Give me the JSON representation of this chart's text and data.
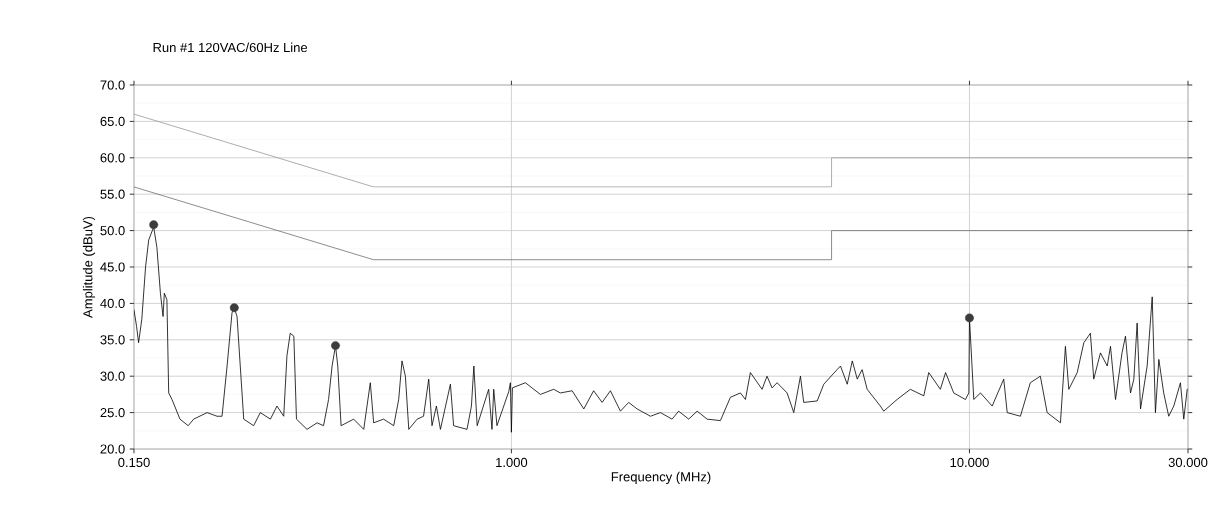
{
  "chart_data": {
    "type": "line",
    "title": "Run #1  120VAC/60Hz   Line",
    "xlabel": "Frequency (MHz)",
    "ylabel": "Amplitude (dBuV)",
    "log": "x",
    "xlim": [
      0.15,
      30
    ],
    "ylim": [
      20,
      70
    ],
    "xticks": [
      {
        "value": 0.15,
        "label": "0.150"
      },
      {
        "value": 1,
        "label": "1.000"
      },
      {
        "value": 10,
        "label": "10.000"
      },
      {
        "value": 30,
        "label": "30.000"
      }
    ],
    "yticks": [
      {
        "value": 20,
        "label": "20.0"
      },
      {
        "value": 25,
        "label": "25.0"
      },
      {
        "value": 30,
        "label": "30.0"
      },
      {
        "value": 35,
        "label": "35.0"
      },
      {
        "value": 40,
        "label": "40.0"
      },
      {
        "value": 45,
        "label": "45.0"
      },
      {
        "value": 50,
        "label": "50.0"
      },
      {
        "value": 55,
        "label": "55.0"
      },
      {
        "value": 60,
        "label": "60.0"
      },
      {
        "value": 65,
        "label": "65.0"
      },
      {
        "value": 70,
        "label": "70.0"
      }
    ],
    "grid": true,
    "series": [
      {
        "color": "#999999",
        "x": [
          0.15,
          0.5,
          5,
          5,
          30
        ],
        "values": [
          66,
          56,
          56,
          60,
          60
        ]
      },
      {
        "color": "#707070",
        "x": [
          0.15,
          0.5,
          5,
          5,
          30
        ],
        "values": [
          56,
          46,
          46,
          50,
          50
        ]
      },
      {
        "color": "#000000",
        "x": [
          0.15,
          0.152,
          0.1535,
          0.156,
          0.159,
          0.1615,
          0.1656,
          0.1683,
          0.1713,
          0.1736,
          0.1747,
          0.177,
          0.1786,
          0.1816,
          0.189,
          0.197,
          0.2025,
          0.2166,
          0.2277,
          0.2335,
          0.2395,
          0.2455,
          0.2483,
          0.2518,
          0.2559,
          0.2604,
          0.2737,
          0.283,
          0.2978,
          0.3078,
          0.3184,
          0.3236,
          0.329,
          0.335,
          0.3395,
          0.358,
          0.3766,
          0.389,
          0.399,
          0.406,
          0.413,
          0.4178,
          0.4248,
          0.4525,
          0.476,
          0.492,
          0.5004,
          0.526,
          0.5535,
          0.5675,
          0.577,
          0.587,
          0.597,
          0.6226,
          0.643,
          0.66,
          0.671,
          0.686,
          0.7,
          0.736,
          0.748,
          0.8,
          0.818,
          0.828,
          0.842,
          0.892,
          0.907,
          0.915,
          0.93,
          0.987,
          0.995,
          1.0,
          1.005,
          1.073,
          1.157,
          1.237,
          1.279,
          1.357,
          1.439,
          1.512,
          1.578,
          1.645,
          1.73,
          1.803,
          1.882,
          2.012,
          2.115,
          2.243,
          2.318,
          2.438,
          2.544,
          2.675,
          2.86,
          3.007,
          3.162,
          3.243,
          3.325,
          3.526,
          3.615,
          3.707,
          3.803,
          3.999,
          4.135,
          4.276,
          4.347,
          4.651,
          4.808,
          5.14,
          5.23,
          5.41,
          5.55,
          5.69,
          5.83,
          5.98,
          6.39,
          6.5,
          6.95,
          7.43,
          7.95,
          8.15,
          8.64,
          8.87,
          9.24,
          9.8,
          9.97,
          10.0,
          10.22,
          10.57,
          11.21,
          11.88,
          12.09,
          12.92,
          13.58,
          14.28,
          14.78,
          15.8,
          16.2,
          16.48,
          17.19,
          17.77,
          18.37,
          18.68,
          19.32,
          19.99,
          20.32,
          20.84,
          21.53,
          21.91,
          22.47,
          22.85,
          23.23,
          23.63,
          24.43,
          25.06,
          25.47,
          25.91,
          26.55,
          27.23,
          27.93,
          28.88,
          29.37,
          29.88
        ],
        "values": [
          39.1,
          36.8,
          34.6,
          37.8,
          45.0,
          48.7,
          50.5,
          47.7,
          41.4,
          38.2,
          41.4,
          40.5,
          27.7,
          26.8,
          24.1,
          23.2,
          24.1,
          25.0,
          24.5,
          24.5,
          31.4,
          38.7,
          39.4,
          38.2,
          31.4,
          24.1,
          23.2,
          25.0,
          24.1,
          25.9,
          24.5,
          32.8,
          35.9,
          35.5,
          24.1,
          22.7,
          23.6,
          23.2,
          26.8,
          31.4,
          34.2,
          31.4,
          23.2,
          24.1,
          22.7,
          29.1,
          23.6,
          24.1,
          23.2,
          26.8,
          32.1,
          30.0,
          22.7,
          24.1,
          24.5,
          29.6,
          23.2,
          25.9,
          22.7,
          28.9,
          23.2,
          22.7,
          25.9,
          31.4,
          23.2,
          28.2,
          22.7,
          28.2,
          23.2,
          27.9,
          29.1,
          22.3,
          28.4,
          29.1,
          27.5,
          28.2,
          27.7,
          28.0,
          25.5,
          28.0,
          26.4,
          28.0,
          25.2,
          26.4,
          25.5,
          24.5,
          25.0,
          24.1,
          25.2,
          24.1,
          25.2,
          24.1,
          23.9,
          27.1,
          27.7,
          26.8,
          30.5,
          28.2,
          30.0,
          28.4,
          29.1,
          27.7,
          25.0,
          30.0,
          26.4,
          26.6,
          28.9,
          30.9,
          31.4,
          28.9,
          32.1,
          29.6,
          30.9,
          28.2,
          25.9,
          25.2,
          26.8,
          28.2,
          27.3,
          30.5,
          28.2,
          30.5,
          27.7,
          26.8,
          27.7,
          38.0,
          26.8,
          27.7,
          25.9,
          29.6,
          25.0,
          24.5,
          29.1,
          30.0,
          25.0,
          23.6,
          34.1,
          28.2,
          30.5,
          34.6,
          35.9,
          29.6,
          33.2,
          31.4,
          34.1,
          26.8,
          33.2,
          35.5,
          27.7,
          29.6,
          37.3,
          25.5,
          31.4,
          40.9,
          25.0,
          32.3,
          27.7,
          24.5,
          25.9,
          29.1,
          24.1,
          28.2
        ]
      },
      {
        "type": "scatter",
        "marker": "circle",
        "color": "#3c3c3c",
        "x": [
          0.1656,
          0.2483,
          0.413,
          10.0
        ],
        "values": [
          50.8,
          39.4,
          34.2,
          38.0
        ]
      }
    ]
  }
}
